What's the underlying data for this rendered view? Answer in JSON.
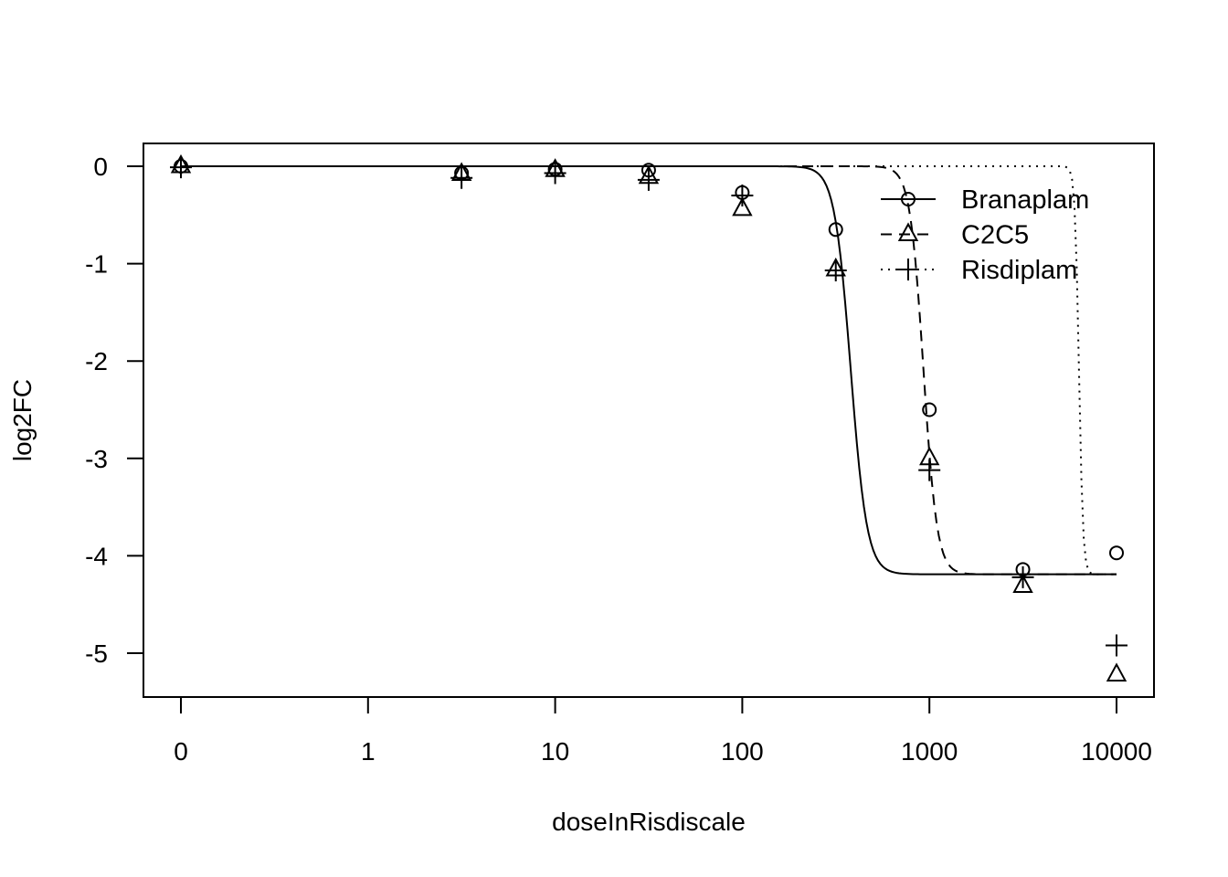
{
  "chart_data": {
    "type": "line",
    "title": "",
    "xlabel": "doseInRisdiscale",
    "ylabel": "log2FC",
    "x_scale": "log10 (0 plotted at the position of 0.1)",
    "x_ticks": [
      {
        "value": 0.1,
        "label": "0"
      },
      {
        "value": 1,
        "label": "1"
      },
      {
        "value": 10,
        "label": "10"
      },
      {
        "value": 100,
        "label": "100"
      },
      {
        "value": 1000,
        "label": "1000"
      },
      {
        "value": 10000,
        "label": "10000"
      }
    ],
    "y_ticks": [
      {
        "value": 0,
        "label": "0"
      },
      {
        "value": -1,
        "label": "-1"
      },
      {
        "value": -2,
        "label": "-2"
      },
      {
        "value": -3,
        "label": "-3"
      },
      {
        "value": -4,
        "label": "-4"
      },
      {
        "value": -5,
        "label": "-5"
      }
    ],
    "xlim": [
      0.1,
      10000
    ],
    "ylim": [
      -5.45,
      0.24
    ],
    "grid": false,
    "legend_position": "top-right",
    "series": [
      {
        "name": "Branaplam",
        "marker": "circle",
        "linestyle": "solid",
        "points": [
          {
            "x": 0.1,
            "y": 0.0
          },
          {
            "x": 3.16,
            "y": -0.07
          },
          {
            "x": 10,
            "y": -0.03
          },
          {
            "x": 31.6,
            "y": -0.04
          },
          {
            "x": 100,
            "y": -0.27
          },
          {
            "x": 316,
            "y": -0.65
          },
          {
            "x": 1000,
            "y": -2.5
          },
          {
            "x": 3160,
            "y": -4.14
          },
          {
            "x": 10000,
            "y": -3.97
          }
        ],
        "fit": {
          "top": 0.0,
          "bottom": -4.19,
          "ec50": 380,
          "hill": 10
        }
      },
      {
        "name": "C2C5",
        "marker": "triangle",
        "linestyle": "dashed",
        "points": [
          {
            "x": 0.1,
            "y": 0.0
          },
          {
            "x": 3.16,
            "y": -0.08
          },
          {
            "x": 10,
            "y": -0.04
          },
          {
            "x": 31.6,
            "y": -0.11
          },
          {
            "x": 100,
            "y": -0.44
          },
          {
            "x": 316,
            "y": -1.06
          },
          {
            "x": 1000,
            "y": -3.0
          },
          {
            "x": 3160,
            "y": -4.31
          },
          {
            "x": 10000,
            "y": -5.22
          }
        ],
        "fit": {
          "top": 0.0,
          "bottom": -4.19,
          "ec50": 930,
          "hill": 12
        }
      },
      {
        "name": "Risdiplam",
        "marker": "plus",
        "linestyle": "dotted",
        "points": [
          {
            "x": 0.1,
            "y": -0.01
          },
          {
            "x": 3.16,
            "y": -0.12
          },
          {
            "x": 10,
            "y": -0.07
          },
          {
            "x": 31.6,
            "y": -0.14
          },
          {
            "x": 100,
            "y": -0.3
          },
          {
            "x": 316,
            "y": -1.07
          },
          {
            "x": 1000,
            "y": -3.12
          },
          {
            "x": 3160,
            "y": -4.22
          },
          {
            "x": 10000,
            "y": -4.92
          }
        ],
        "fit": {
          "top": 0.0,
          "bottom": -4.19,
          "ec50": 6300,
          "hill": 40
        }
      }
    ]
  }
}
